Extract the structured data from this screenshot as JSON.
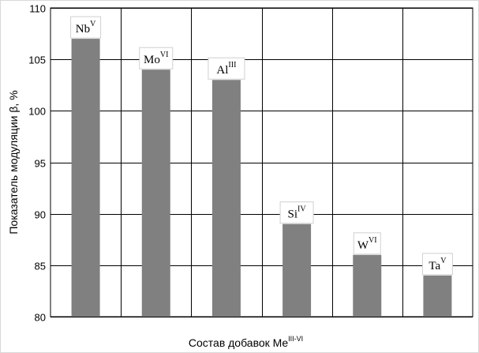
{
  "chart_data": {
    "type": "bar",
    "categories": [
      "Nb",
      "Mo",
      "Al",
      "Si",
      "W",
      "Ta"
    ],
    "data_labels": [
      {
        "base": "Nb",
        "sup": "V"
      },
      {
        "base": "Mo",
        "sup": "VI"
      },
      {
        "base": "Al",
        "sup": "III"
      },
      {
        "base": "Si",
        "sup": "IV"
      },
      {
        "base": "W",
        "sup": "VI"
      },
      {
        "base": "Ta",
        "sup": "V"
      }
    ],
    "values": [
      107,
      104,
      103,
      89,
      86,
      84
    ],
    "title": "",
    "xlabel": {
      "base": "Состав добавок Me",
      "sup": "III-VI"
    },
    "ylabel": "Показатель модуляции β, %",
    "ylim": [
      80,
      110
    ],
    "yticks": [
      80,
      85,
      90,
      95,
      100,
      105,
      110
    ],
    "grid": true,
    "bar_color": "#808080"
  }
}
